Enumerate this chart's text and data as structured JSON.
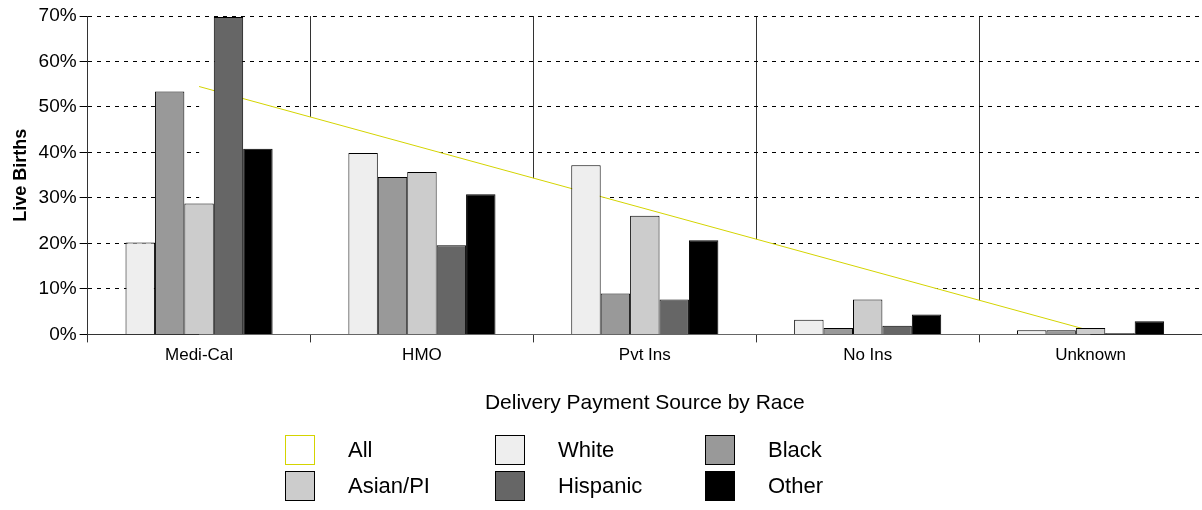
{
  "chart_data": {
    "type": "bar",
    "xlabel": "Delivery Payment Source by Race",
    "ylabel": "Live Births",
    "categories": [
      "Medi-Cal",
      "HMO",
      "Pvt Ins",
      "No Ins",
      "Unknown"
    ],
    "series": [
      {
        "name": "All",
        "type": "area",
        "color": "#d4d400",
        "values": [
          54.5,
          null,
          null,
          null,
          0.8
        ]
      },
      {
        "name": "White",
        "color": "#eeeeee",
        "values": [
          20.2,
          39.9,
          37.2,
          3.2,
          0.9
        ]
      },
      {
        "name": "Black",
        "color": "#999999",
        "values": [
          53.4,
          34.6,
          9,
          1.4,
          0.9
        ]
      },
      {
        "name": "Asian/PI",
        "color": "#cccccc",
        "values": [
          28.8,
          35.7,
          26.1,
          7.7,
          1.4
        ]
      },
      {
        "name": "Hispanic",
        "color": "#666666",
        "values": [
          69.8,
          19.6,
          7.7,
          1.9,
          0.3
        ]
      },
      {
        "name": "Other",
        "color": "#000000",
        "values": [
          40.8,
          30.8,
          20.7,
          4.4,
          2.9
        ]
      }
    ],
    "ylim": [
      0,
      70
    ],
    "yticks": [
      {
        "value": 0,
        "label": "0%"
      },
      {
        "value": 10,
        "label": "10%"
      },
      {
        "value": 20,
        "label": "20%"
      },
      {
        "value": 30,
        "label": "30%"
      },
      {
        "value": 40,
        "label": "40%"
      },
      {
        "value": 50,
        "label": "50%"
      },
      {
        "value": 60,
        "label": "60%"
      },
      {
        "value": 70,
        "label": "70%"
      }
    ],
    "grid": true,
    "legend": "bottom",
    "marker": "none"
  }
}
